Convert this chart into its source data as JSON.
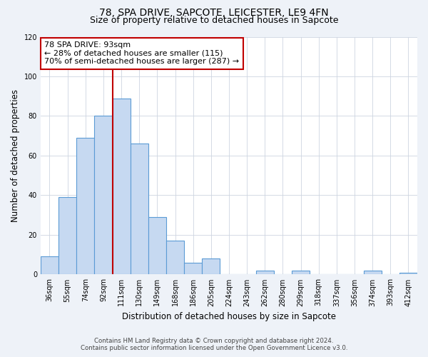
{
  "title": "78, SPA DRIVE, SAPCOTE, LEICESTER, LE9 4FN",
  "subtitle": "Size of property relative to detached houses in Sapcote",
  "xlabel": "Distribution of detached houses by size in Sapcote",
  "ylabel": "Number of detached properties",
  "bar_labels": [
    "36sqm",
    "55sqm",
    "74sqm",
    "92sqm",
    "111sqm",
    "130sqm",
    "149sqm",
    "168sqm",
    "186sqm",
    "205sqm",
    "224sqm",
    "243sqm",
    "262sqm",
    "280sqm",
    "299sqm",
    "318sqm",
    "337sqm",
    "356sqm",
    "374sqm",
    "393sqm",
    "412sqm"
  ],
  "bar_values": [
    9,
    39,
    69,
    80,
    89,
    66,
    29,
    17,
    6,
    8,
    0,
    0,
    2,
    0,
    2,
    0,
    0,
    0,
    2,
    0,
    1
  ],
  "bar_color": "#c6d9f1",
  "bar_edge_color": "#5b9bd5",
  "vline_x": 3.5,
  "vline_color": "#c00000",
  "ylim": [
    0,
    120
  ],
  "yticks": [
    0,
    20,
    40,
    60,
    80,
    100,
    120
  ],
  "annotation_title": "78 SPA DRIVE: 93sqm",
  "annotation_line1": "← 28% of detached houses are smaller (115)",
  "annotation_line2": "70% of semi-detached houses are larger (287) →",
  "footer_line1": "Contains HM Land Registry data © Crown copyright and database right 2024.",
  "footer_line2": "Contains public sector information licensed under the Open Government Licence v3.0.",
  "bg_color": "#eef2f8",
  "plot_bg_color": "#ffffff",
  "title_fontsize": 10,
  "subtitle_fontsize": 9,
  "tick_fontsize": 7,
  "ylabel_fontsize": 8.5,
  "xlabel_fontsize": 8.5
}
